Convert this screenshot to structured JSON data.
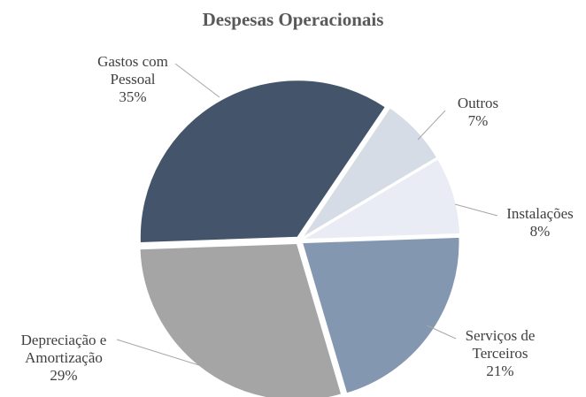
{
  "chart_data": {
    "type": "pie",
    "title": "Despesas Operacionais",
    "categories": [
      "Gastos com Pessoal",
      "Outros",
      "Instalações",
      "Serviços de Terceiros",
      "Depreciação e Amortização"
    ],
    "values": [
      35,
      7,
      8,
      21,
      29
    ],
    "value_labels": [
      "35%",
      "7%",
      "8%",
      "21%",
      "29%"
    ],
    "colors": [
      "#44546a",
      "#d6dce5",
      "#e9ecf5",
      "#8497b0",
      "#a5a5a5"
    ]
  }
}
